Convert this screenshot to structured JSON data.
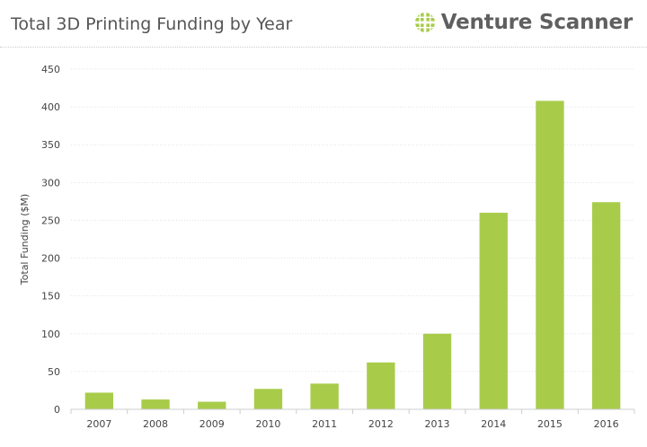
{
  "header": {
    "title": "Total 3D Printing Funding by Year",
    "brand": "Venture Scanner",
    "brand_logo_color": "#a8cc4a"
  },
  "chart_data": {
    "type": "bar",
    "categories": [
      "2007",
      "2008",
      "2009",
      "2010",
      "2011",
      "2012",
      "2013",
      "2014",
      "2015",
      "2016"
    ],
    "values": [
      22,
      13,
      10,
      27,
      34,
      62,
      100,
      260,
      408,
      274
    ],
    "title": "Total 3D Printing Funding by Year",
    "xlabel": "",
    "ylabel": "Total Funding ($M)",
    "ylim": [
      0,
      450
    ],
    "yticks": [
      0,
      50,
      100,
      150,
      200,
      250,
      300,
      350,
      400,
      450
    ],
    "grid": true,
    "bar_color": "#a8cc4a"
  }
}
